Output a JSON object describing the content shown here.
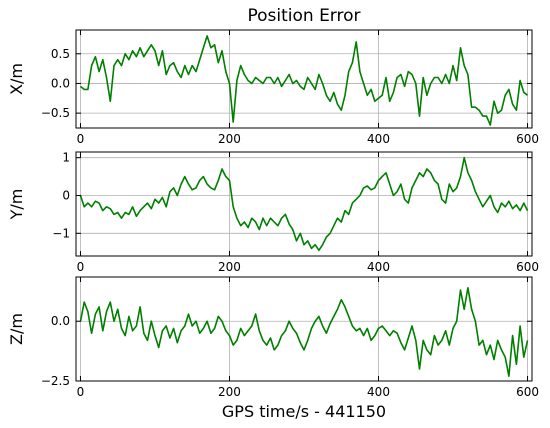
{
  "chart_data": {
    "type": "line",
    "title": "Position Error",
    "xlabel": "GPS time/s - 441150",
    "series_color": "#007f00",
    "grid": true,
    "panels": [
      {
        "ylabel": "X/m",
        "xlim": [
          -6,
          606
        ],
        "ylim": [
          -0.75,
          0.9
        ],
        "xticks": [
          0,
          200,
          400,
          600
        ],
        "xtick_labels": [
          "0",
          "200",
          "400",
          "600"
        ],
        "yticks": [
          0.5,
          0.0,
          -0.5
        ],
        "ytick_labels": [
          "0.5",
          "0.0",
          "−0.5"
        ],
        "x": [
          0,
          5,
          10,
          15,
          20,
          25,
          30,
          35,
          40,
          45,
          50,
          55,
          60,
          65,
          70,
          75,
          80,
          85,
          90,
          95,
          100,
          105,
          110,
          115,
          120,
          125,
          130,
          135,
          140,
          145,
          150,
          155,
          160,
          165,
          170,
          175,
          180,
          185,
          190,
          195,
          200,
          205,
          210,
          215,
          220,
          225,
          230,
          235,
          240,
          245,
          250,
          255,
          260,
          265,
          270,
          275,
          280,
          285,
          290,
          295,
          300,
          305,
          310,
          315,
          320,
          325,
          330,
          335,
          340,
          345,
          350,
          355,
          360,
          365,
          370,
          375,
          380,
          385,
          390,
          395,
          400,
          405,
          410,
          415,
          420,
          425,
          430,
          435,
          440,
          445,
          450,
          455,
          460,
          465,
          470,
          475,
          480,
          485,
          490,
          495,
          500,
          505,
          510,
          515,
          520,
          525,
          530,
          535,
          540,
          545,
          550,
          555,
          560,
          565,
          570,
          575,
          580,
          585,
          590,
          595,
          600
        ],
        "y": [
          -0.05,
          -0.1,
          -0.1,
          0.3,
          0.45,
          0.2,
          0.4,
          0.1,
          -0.3,
          0.3,
          0.4,
          0.3,
          0.5,
          0.4,
          0.55,
          0.45,
          0.6,
          0.45,
          0.55,
          0.65,
          0.55,
          0.3,
          0.55,
          0.15,
          0.3,
          0.35,
          0.2,
          0.1,
          0.3,
          0.15,
          0.3,
          0.2,
          0.4,
          0.6,
          0.8,
          0.6,
          0.65,
          0.35,
          0.55,
          0.2,
          0.0,
          -0.65,
          0.05,
          0.3,
          0.15,
          0.05,
          0.0,
          0.1,
          0.05,
          0.0,
          0.1,
          0.1,
          0.0,
          0.1,
          -0.05,
          0.05,
          0.15,
          0.0,
          0.05,
          -0.05,
          -0.1,
          0.1,
          0.0,
          -0.1,
          0.15,
          0.0,
          -0.2,
          -0.3,
          -0.15,
          -0.35,
          -0.45,
          -0.2,
          0.2,
          0.35,
          0.7,
          0.2,
          0.0,
          -0.2,
          -0.1,
          -0.3,
          -0.25,
          -0.2,
          0.1,
          -0.3,
          -0.15,
          0.1,
          0.15,
          -0.05,
          0.2,
          0.15,
          0.0,
          -0.55,
          0.1,
          -0.2,
          0.0,
          0.1,
          0.1,
          0.0,
          0.15,
          0.0,
          0.3,
          0.05,
          0.6,
          0.3,
          0.15,
          -0.4,
          -0.4,
          -0.45,
          -0.55,
          -0.55,
          -0.7,
          -0.3,
          -0.5,
          -0.45,
          -0.2,
          -0.1,
          -0.35,
          -0.45,
          0.05,
          -0.15,
          -0.2
        ]
      },
      {
        "ylabel": "Y/m",
        "xlim": [
          -6,
          606
        ],
        "ylim": [
          -1.6,
          1.15
        ],
        "xticks": [
          0,
          200,
          400,
          600
        ],
        "xtick_labels": [
          "0",
          "200",
          "400",
          "600"
        ],
        "yticks": [
          1,
          0,
          -1
        ],
        "ytick_labels": [
          "1",
          "0",
          "−1"
        ],
        "x": [
          0,
          5,
          10,
          15,
          20,
          25,
          30,
          35,
          40,
          45,
          50,
          55,
          60,
          65,
          70,
          75,
          80,
          85,
          90,
          95,
          100,
          105,
          110,
          115,
          120,
          125,
          130,
          135,
          140,
          145,
          150,
          155,
          160,
          165,
          170,
          175,
          180,
          185,
          190,
          195,
          200,
          205,
          210,
          215,
          220,
          225,
          230,
          235,
          240,
          245,
          250,
          255,
          260,
          265,
          270,
          275,
          280,
          285,
          290,
          295,
          300,
          305,
          310,
          315,
          320,
          325,
          330,
          335,
          340,
          345,
          350,
          355,
          360,
          365,
          370,
          375,
          380,
          385,
          390,
          395,
          400,
          405,
          410,
          415,
          420,
          425,
          430,
          435,
          440,
          445,
          450,
          455,
          460,
          465,
          470,
          475,
          480,
          485,
          490,
          495,
          500,
          505,
          510,
          515,
          520,
          525,
          530,
          535,
          540,
          545,
          550,
          555,
          560,
          565,
          570,
          575,
          580,
          585,
          590,
          595,
          600
        ],
        "y": [
          0.0,
          -0.3,
          -0.2,
          -0.3,
          -0.15,
          -0.2,
          -0.4,
          -0.3,
          -0.35,
          -0.5,
          -0.45,
          -0.6,
          -0.45,
          -0.5,
          -0.3,
          -0.55,
          -0.4,
          -0.3,
          -0.2,
          -0.35,
          -0.1,
          -0.2,
          -0.05,
          -0.3,
          0.1,
          0.2,
          0.0,
          0.3,
          0.5,
          0.3,
          0.15,
          0.2,
          0.4,
          0.5,
          0.3,
          0.2,
          0.15,
          0.4,
          0.7,
          0.5,
          0.4,
          -0.3,
          -0.6,
          -0.8,
          -0.7,
          -0.85,
          -0.6,
          -0.7,
          -0.9,
          -0.6,
          -0.8,
          -0.6,
          -0.7,
          -0.8,
          -0.6,
          -0.5,
          -0.75,
          -0.9,
          -1.2,
          -1.0,
          -1.3,
          -1.2,
          -1.4,
          -1.3,
          -1.45,
          -1.3,
          -1.1,
          -1.0,
          -0.8,
          -0.6,
          -0.7,
          -0.4,
          -0.5,
          -0.2,
          -0.1,
          0.0,
          0.2,
          0.25,
          0.15,
          0.2,
          0.4,
          0.5,
          0.6,
          0.3,
          0.0,
          0.1,
          0.3,
          -0.1,
          -0.2,
          0.2,
          0.4,
          0.6,
          0.5,
          0.7,
          0.6,
          0.4,
          0.3,
          -0.1,
          -0.2,
          0.3,
          0.1,
          0.2,
          0.5,
          1.0,
          0.6,
          0.4,
          0.1,
          -0.1,
          -0.3,
          -0.15,
          0.0,
          -0.3,
          -0.45,
          -0.2,
          -0.3,
          -0.15,
          -0.35,
          -0.25,
          -0.4,
          -0.2,
          -0.4
        ]
      },
      {
        "ylabel": "Z/m",
        "xlim": [
          -6,
          606
        ],
        "ylim": [
          -2.5,
          1.85
        ],
        "xticks": [
          0,
          200,
          400,
          600
        ],
        "xtick_labels": [
          "0",
          "200",
          "400",
          "600"
        ],
        "yticks": [
          0.0,
          -2.5
        ],
        "ytick_labels": [
          "0.0",
          "−2.5"
        ],
        "x": [
          0,
          5,
          10,
          15,
          20,
          25,
          30,
          35,
          40,
          45,
          50,
          55,
          60,
          65,
          70,
          75,
          80,
          85,
          90,
          95,
          100,
          105,
          110,
          115,
          120,
          125,
          130,
          135,
          140,
          145,
          150,
          155,
          160,
          165,
          170,
          175,
          180,
          185,
          190,
          195,
          200,
          205,
          210,
          215,
          220,
          225,
          230,
          235,
          240,
          245,
          250,
          255,
          260,
          265,
          270,
          275,
          280,
          285,
          290,
          295,
          300,
          305,
          310,
          315,
          320,
          325,
          330,
          335,
          340,
          345,
          350,
          355,
          360,
          365,
          370,
          375,
          380,
          385,
          390,
          395,
          400,
          405,
          410,
          415,
          420,
          425,
          430,
          435,
          440,
          445,
          450,
          455,
          460,
          465,
          470,
          475,
          480,
          485,
          490,
          495,
          500,
          505,
          510,
          515,
          520,
          525,
          530,
          535,
          540,
          545,
          550,
          555,
          560,
          565,
          570,
          575,
          580,
          585,
          590,
          595,
          600
        ],
        "y": [
          0.0,
          0.8,
          0.4,
          -0.5,
          0.3,
          0.6,
          -0.4,
          0.4,
          0.8,
          0.0,
          0.5,
          -0.3,
          -0.6,
          0.2,
          -0.4,
          -0.2,
          0.6,
          -0.5,
          -0.8,
          0.0,
          -0.6,
          -1.1,
          -0.4,
          -0.2,
          -0.7,
          -0.3,
          -0.9,
          -0.4,
          -0.2,
          0.3,
          -0.2,
          0.0,
          -0.5,
          -0.3,
          0.0,
          -0.5,
          -0.3,
          0.2,
          0.0,
          -0.4,
          -0.6,
          -1.0,
          -0.8,
          -0.3,
          -0.6,
          -0.4,
          -0.2,
          0.3,
          -0.4,
          -0.8,
          -1.0,
          -0.7,
          -1.2,
          -1.0,
          -0.6,
          -0.4,
          0.0,
          -0.3,
          -0.5,
          -0.9,
          -1.2,
          -0.8,
          -0.3,
          0.0,
          0.2,
          -0.2,
          -0.5,
          -0.1,
          0.2,
          0.5,
          0.9,
          0.6,
          0.2,
          -0.2,
          -0.4,
          -0.3,
          -0.6,
          -0.3,
          -0.8,
          -0.6,
          -0.3,
          -0.2,
          -0.4,
          -0.6,
          -0.4,
          -0.5,
          -0.9,
          -1.2,
          -0.7,
          -0.2,
          -0.8,
          -2.0,
          -0.8,
          -1.2,
          -1.4,
          -0.6,
          -1.0,
          -0.8,
          -0.4,
          -1.0,
          -0.3,
          0.0,
          1.3,
          0.5,
          1.4,
          0.5,
          0.0,
          -1.0,
          -0.8,
          -1.4,
          -1.0,
          -1.6,
          -0.8,
          -1.2,
          -1.5,
          -2.3,
          -0.6,
          -1.8,
          -0.2,
          -1.5,
          -0.8
        ]
      }
    ]
  }
}
